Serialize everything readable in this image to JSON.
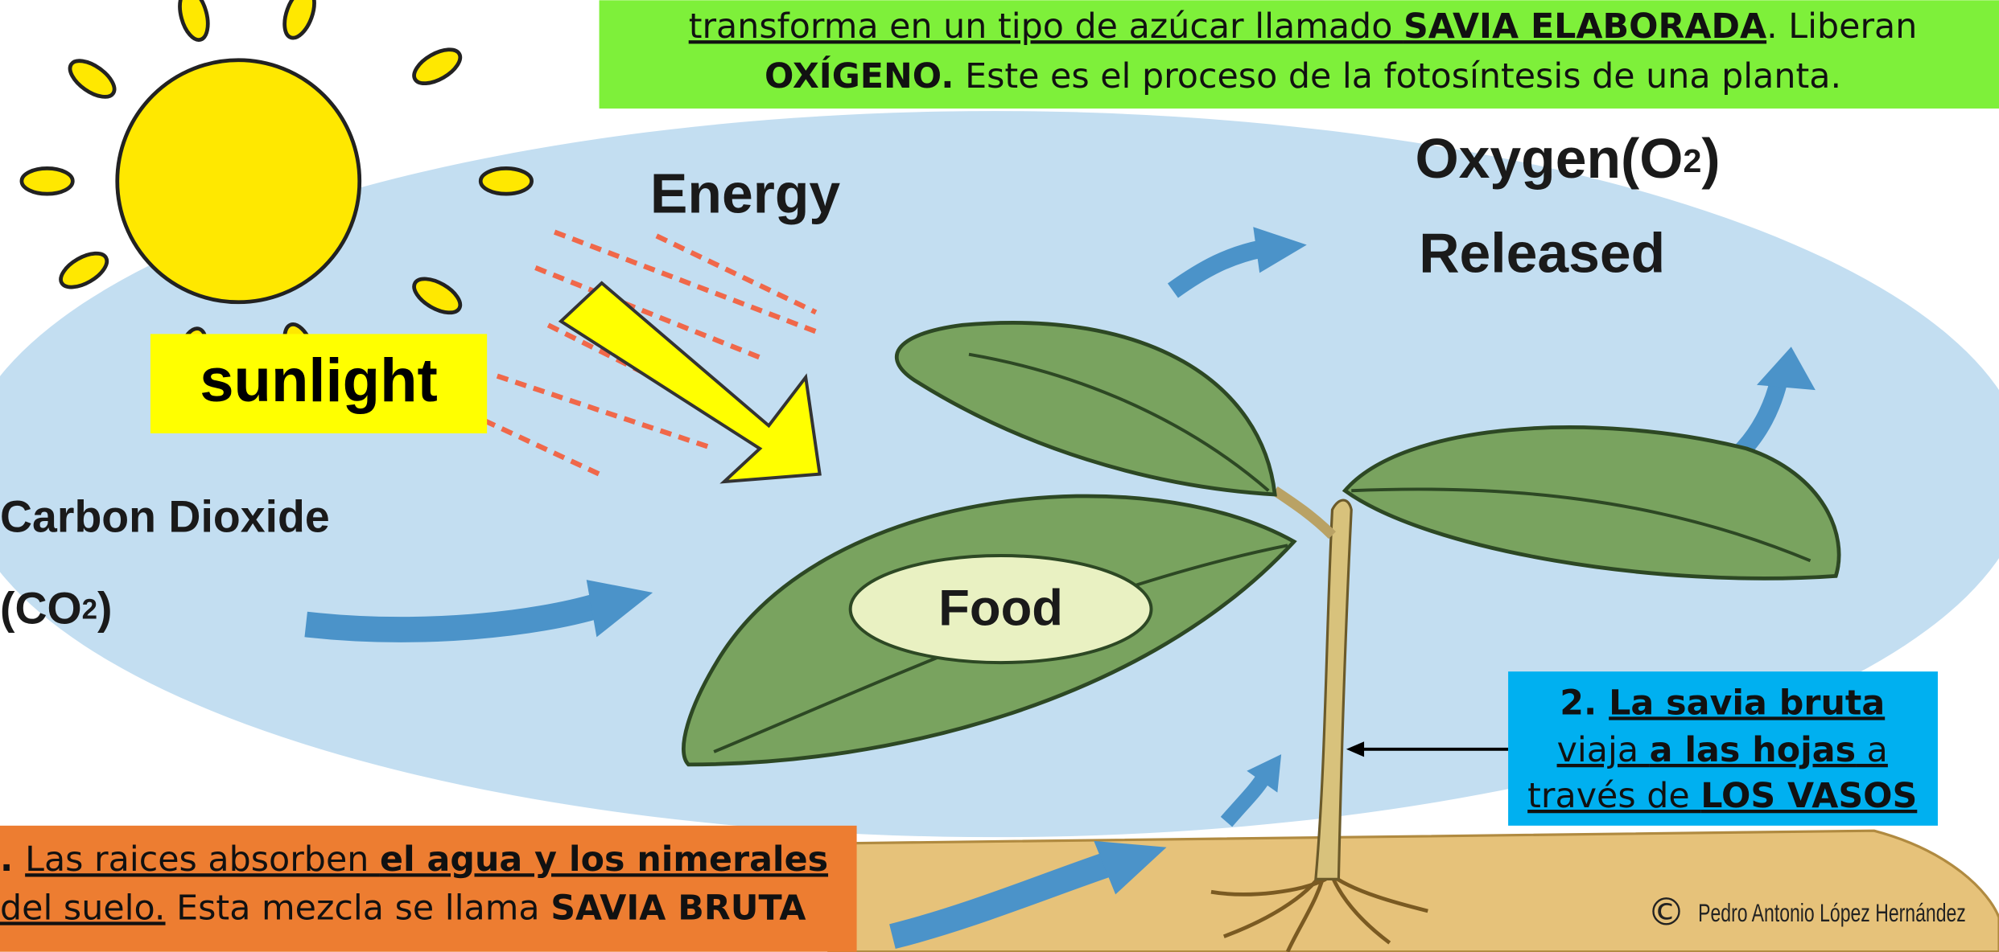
{
  "top_box": {
    "line_2": [
      "transforma en un tipo de azúcar llamado ",
      "SAVIA ELABORADA",
      ". Liberan"
    ],
    "line_3": [
      "OXÍGENO.",
      " Este es el proceso de la fotosíntesis de una planta."
    ]
  },
  "labels": {
    "energy": "Energy",
    "oxygen": [
      "Oxygen(O",
      "2",
      ")"
    ],
    "released": "Released",
    "sunlight": "sunlight",
    "carbon_dioxide": "Carbon Dioxide",
    "co2": [
      "(CO",
      "2",
      ")"
    ],
    "food": "Food"
  },
  "step_2": {
    "lines": [
      [
        "2. ",
        "La savia bruta"
      ],
      [
        "viaja ",
        "a las hojas",
        " a"
      ],
      [
        "través de ",
        "LOS VASOS"
      ]
    ]
  },
  "step_1": {
    "lines": [
      [
        ". ",
        "Las raices absorben ",
        "el agua y los nimerales"
      ],
      [
        "del suelo.",
        " Esta mezcla se llama ",
        "SAVIA BRUTA"
      ]
    ]
  },
  "copyright": {
    "symbol": "©",
    "author": "Pedro Antonio López Hernández"
  }
}
